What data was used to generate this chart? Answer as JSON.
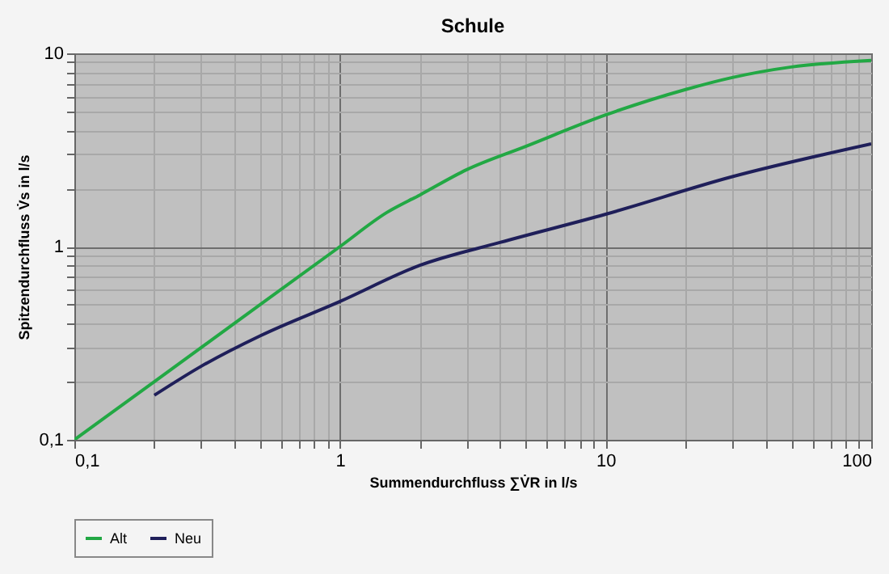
{
  "chart_data": {
    "type": "line",
    "title": "Schule",
    "xlabel": "Summendurchfluss ∑V̇R in l/s",
    "ylabel": "Spitzendurchfluss V̇s in l/s",
    "log": "xy",
    "grid": true,
    "legend": "bottom",
    "marker": "none",
    "line_style": "solid",
    "xlim": [
      0.1,
      100
    ],
    "ylim": [
      0.1,
      10
    ],
    "xticks": [
      {
        "value": 0.1,
        "label": "0,1"
      },
      {
        "value": 0.2,
        "label": null
      },
      {
        "value": 0.3,
        "label": null
      },
      {
        "value": 0.4,
        "label": null
      },
      {
        "value": 0.5,
        "label": null
      },
      {
        "value": 0.6,
        "label": null
      },
      {
        "value": 0.7,
        "label": null
      },
      {
        "value": 0.8,
        "label": null
      },
      {
        "value": 0.9,
        "label": null
      },
      1,
      {
        "value": 2,
        "label": null
      },
      {
        "value": 3,
        "label": null
      },
      {
        "value": 4,
        "label": null
      },
      {
        "value": 5,
        "label": null
      },
      {
        "value": 6,
        "label": null
      },
      {
        "value": 7,
        "label": null
      },
      {
        "value": 8,
        "label": null
      },
      {
        "value": 9,
        "label": null
      },
      10,
      {
        "value": 20,
        "label": null
      },
      {
        "value": 30,
        "label": null
      },
      {
        "value": 40,
        "label": null
      },
      {
        "value": 50,
        "label": null
      },
      {
        "value": 60,
        "label": null
      },
      {
        "value": 70,
        "label": null
      },
      {
        "value": 80,
        "label": null
      },
      {
        "value": 90,
        "label": null
      },
      100
    ],
    "yticks": [
      {
        "value": 0.1,
        "label": "0,1"
      },
      {
        "value": 0.2,
        "label": null
      },
      {
        "value": 0.3,
        "label": null
      },
      {
        "value": 0.4,
        "label": null
      },
      {
        "value": 0.5,
        "label": null
      },
      {
        "value": 0.6,
        "label": null
      },
      {
        "value": 0.7,
        "label": null
      },
      {
        "value": 0.8,
        "label": null
      },
      {
        "value": 0.9,
        "label": null
      },
      1,
      {
        "value": 2,
        "label": null
      },
      {
        "value": 3,
        "label": null
      },
      {
        "value": 4,
        "label": null
      },
      {
        "value": 5,
        "label": null
      },
      {
        "value": 6,
        "label": null
      },
      {
        "value": 7,
        "label": null
      },
      {
        "value": 8,
        "label": null
      },
      {
        "value": 9,
        "label": null
      },
      10
    ],
    "series": [
      {
        "name": "Alt",
        "color": "#22a844",
        "x": [
          0.1,
          0.2,
          0.5,
          1,
          1.5,
          2,
          3,
          5,
          10,
          20,
          30,
          50,
          100
        ],
        "values": [
          0.1,
          0.2,
          0.5,
          1,
          1.5,
          1.85,
          2.5,
          3.3,
          4.8,
          6.5,
          7.5,
          8.5,
          9.2
        ]
      },
      {
        "name": "Neu",
        "color": "#1f1f5a",
        "x": [
          0.2,
          0.3,
          0.5,
          1,
          2,
          4,
          10,
          30,
          100
        ],
        "values": [
          0.17,
          0.24,
          0.345,
          0.52,
          0.8,
          1.05,
          1.47,
          2.3,
          3.4
        ]
      }
    ]
  }
}
